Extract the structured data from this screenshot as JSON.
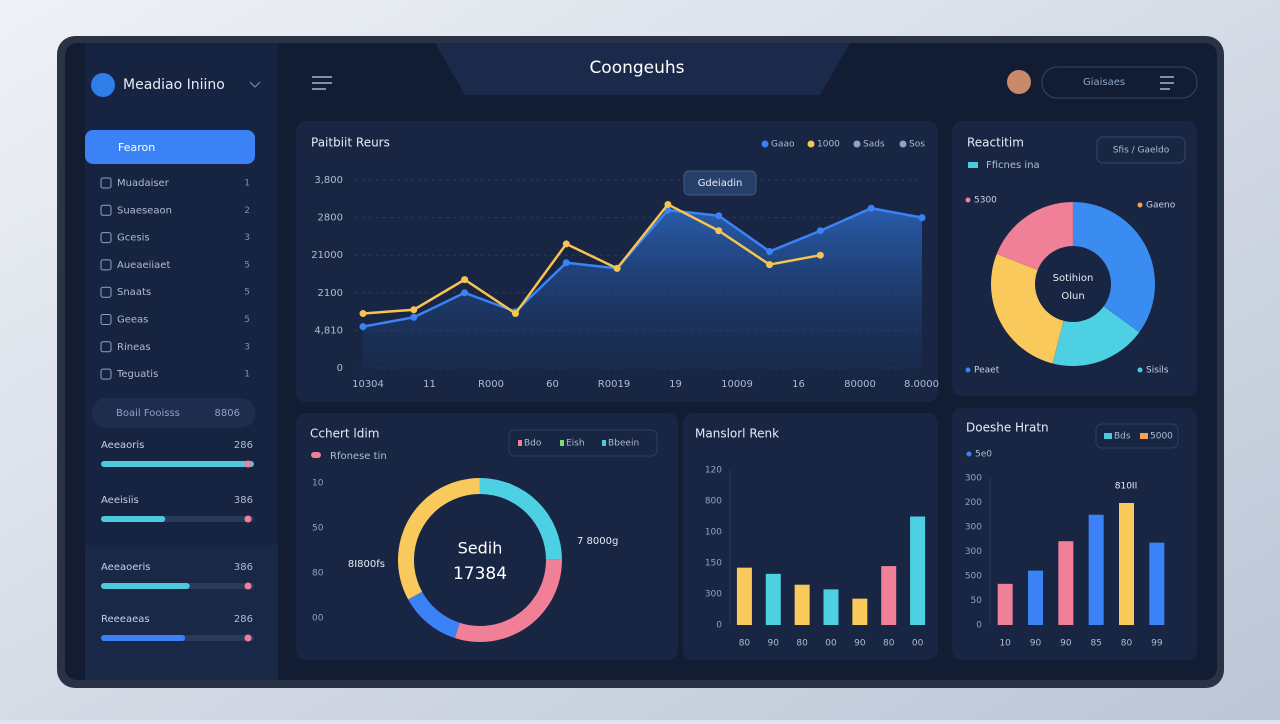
{
  "app": {
    "brand": "Meadiao Iniino",
    "title": "Coongeuhs",
    "search": "Giaisaes"
  },
  "sidebar": {
    "active": "Fearon",
    "items": [
      {
        "label": "Muadaiser",
        "badge": "1"
      },
      {
        "label": "Suaeseaon",
        "badge": "2"
      },
      {
        "label": "Gcesis",
        "badge": "3"
      },
      {
        "label": "Aueaeiiaet",
        "badge": "5"
      },
      {
        "label": "Snaats",
        "badge": "5"
      },
      {
        "label": "Geeas",
        "badge": "5"
      },
      {
        "label": "Rineas",
        "badge": "3"
      },
      {
        "label": "Teguatis",
        "badge": "1"
      }
    ],
    "summary": {
      "label": "Boail Fooisss",
      "value": "8806"
    },
    "progress": [
      {
        "label": "Aeeaoris",
        "value": "286",
        "percent": 100,
        "color": "#4dc8dc"
      },
      {
        "label": "Aeeisiis",
        "value": "386",
        "percent": 42,
        "color": "#4dc8dc"
      },
      {
        "label": "Aeeaoeris",
        "value": "386",
        "percent": 58,
        "color": "#4dc8dc"
      },
      {
        "label": "Reeeaeas",
        "value": "286",
        "percent": 55,
        "color": "#3b82f6"
      }
    ]
  },
  "line_panel": {
    "title": "Paitbiit Reurs",
    "legend": [
      {
        "name": "Gaao",
        "color": "#3b82f6"
      },
      {
        "name": "1000",
        "color": "#f5c451"
      },
      {
        "name": "Sads",
        "color": "#8ea3c4"
      },
      {
        "name": "Sos",
        "color": "#8ea3c4"
      }
    ],
    "callout": "Gdeiadin",
    "y_labels": [
      "0",
      "4,810",
      "2100",
      "21000",
      "2800",
      "3,800"
    ],
    "x_labels": [
      "10304",
      "11",
      "R000",
      "60",
      "R0019",
      "19",
      "10009",
      "16",
      "80000",
      "8.0000"
    ],
    "ylim": [
      0,
      100
    ],
    "series": [
      {
        "color": "#3b82f6",
        "values": [
          22,
          27,
          40,
          30,
          56,
          53,
          84,
          81,
          62,
          73,
          85,
          80
        ]
      },
      {
        "color": "#f5c451",
        "values": [
          29,
          31,
          47,
          29,
          66,
          53,
          87,
          73,
          55,
          60,
          null,
          null
        ]
      }
    ]
  },
  "donut_panel": {
    "title": "Reactitim",
    "legend": "Fficnes ina",
    "filter": "Sfis / Gaeldo",
    "center": [
      "Sotihion",
      "Olun"
    ],
    "labels": [
      {
        "text": "5300",
        "color": "#f07f98"
      },
      {
        "text": "Gaeno",
        "color": "#f5a34d"
      },
      {
        "text": "Peaet",
        "color": "#3b82f6"
      },
      {
        "text": "Sisils",
        "color": "#4dc8dc"
      }
    ],
    "segments": [
      {
        "color": "#3b8cf0",
        "value": 35
      },
      {
        "color": "#4dd0e1",
        "value": 19
      },
      {
        "color": "#f9c95c",
        "value": 27
      },
      {
        "color": "#f07f98",
        "value": 19
      }
    ]
  },
  "ring_panel": {
    "title": "Cchert ldim",
    "legend": "Rfonese tin",
    "chips": [
      {
        "text": "Bdo",
        "color": "#f07f98"
      },
      {
        "text": "Eish",
        "color": "#7ddc6b"
      },
      {
        "text": "Bbeein",
        "color": "#4dc8dc"
      }
    ],
    "center": [
      "Sedih",
      "17384"
    ],
    "callouts": [
      "7 8000g",
      "8I800fs"
    ],
    "y_labels": [
      "10",
      "50",
      "80",
      "00"
    ],
    "segments": [
      {
        "color": "#4dd0e1",
        "value": 25
      },
      {
        "color": "#f07f98",
        "value": 30
      },
      {
        "color": "#3b82f6",
        "value": 12
      },
      {
        "color": "#f9c95c",
        "value": 33
      }
    ]
  },
  "bar_panel_1": {
    "title": "Manslorl Renk",
    "y_labels": [
      "120",
      "800",
      "100",
      "150",
      "300",
      "0"
    ],
    "x_labels": [
      "80",
      "90",
      "80",
      "00",
      "90",
      "80",
      "00"
    ],
    "ylim": [
      0,
      100
    ],
    "bars": [
      {
        "color": "#f9c95c",
        "value": 37
      },
      {
        "color": "#4dd0e1",
        "value": 33
      },
      {
        "color": "#f9c95c",
        "value": 26
      },
      {
        "color": "#4dd0e1",
        "value": 23
      },
      {
        "color": "#f9c95c",
        "value": 17
      },
      {
        "color": "#f07f98",
        "value": 38
      },
      {
        "color": "#4dd0e1",
        "value": 70
      }
    ]
  },
  "bar_panel_2": {
    "title": "Doeshe Hratn",
    "legend": [
      {
        "text": "Bds",
        "color": "#4dc8dc"
      },
      {
        "text": "5000",
        "color": "#f5a34d"
      }
    ],
    "sublegend": "5e0",
    "annotation": "810II",
    "y_labels": [
      "300",
      "200",
      "300",
      "300",
      "500",
      "50",
      "0"
    ],
    "x_labels": [
      "10",
      "90",
      "90",
      "85",
      "80",
      "99"
    ],
    "ylim": [
      0,
      100
    ],
    "bars": [
      {
        "color": "#f07f98",
        "value": 28
      },
      {
        "color": "#3b82f6",
        "value": 37
      },
      {
        "color": "#f07f98",
        "value": 57
      },
      {
        "color": "#3b82f6",
        "value": 75
      },
      {
        "color": "#f9c95c",
        "value": 83
      },
      {
        "color": "#3b82f6",
        "value": 56
      }
    ]
  }
}
